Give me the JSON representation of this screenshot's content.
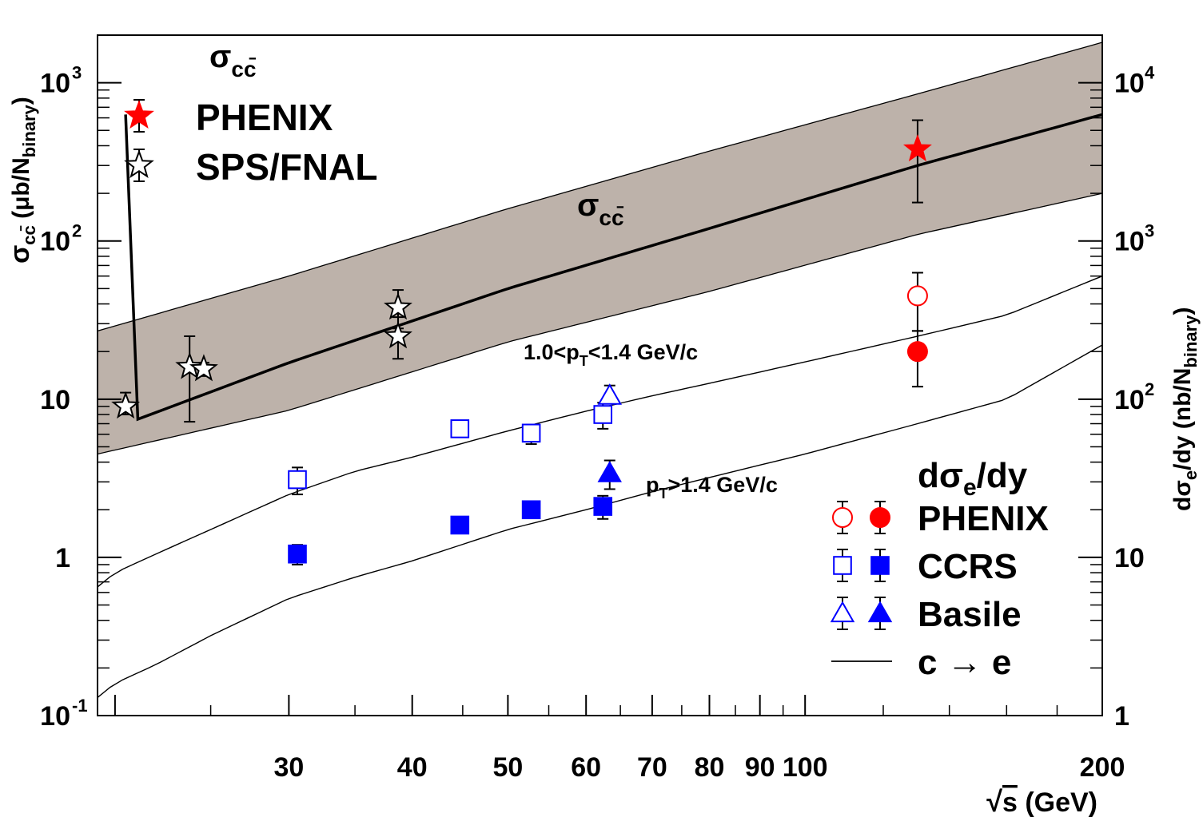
{
  "chart_data": {
    "type": "scatter",
    "x_axis": {
      "label_prefix": "√",
      "label_var": "s",
      "label_unit": " (GeV)",
      "scale": "log",
      "range": [
        19.2,
        200
      ],
      "tick_labels": [
        {
          "value": 30,
          "label": "30"
        },
        {
          "value": 40,
          "label": "40"
        },
        {
          "value": 50,
          "label": "50"
        },
        {
          "value": 60,
          "label": "60"
        },
        {
          "value": 70,
          "label": "70"
        },
        {
          "value": 80,
          "label": "80"
        },
        {
          "value": 90,
          "label": "90"
        },
        {
          "value": 100,
          "label": "100"
        },
        {
          "value": 200,
          "label": "200"
        }
      ]
    },
    "y_left": {
      "label_sigma": "σ",
      "label_sub": "cc̄",
      "label_main": " (μb/N",
      "label_sub2": "binary",
      "label_close": ")",
      "scale": "log",
      "range": [
        0.1,
        2000
      ],
      "tick_labels": [
        {
          "value": 0.1,
          "base": "10",
          "exp": "-1"
        },
        {
          "value": 1,
          "base": "1",
          "exp": ""
        },
        {
          "value": 10,
          "base": "10",
          "exp": ""
        },
        {
          "value": 100,
          "base": "10",
          "exp": "2"
        },
        {
          "value": 1000,
          "base": "10",
          "exp": "3"
        }
      ]
    },
    "y_right": {
      "label_main": "dσ",
      "label_sub": "e",
      "label_mid": "/dy (nb/N",
      "label_sub2": "binary",
      "label_close": ")",
      "scale": "log",
      "range": [
        1,
        20000
      ],
      "tick_labels": [
        {
          "value": 1,
          "base": "1",
          "exp": ""
        },
        {
          "value": 10,
          "base": "10",
          "exp": ""
        },
        {
          "value": 100,
          "base": "10",
          "exp": "2"
        },
        {
          "value": 1000,
          "base": "10",
          "exp": "3"
        },
        {
          "value": 10000,
          "base": "10",
          "exp": "4"
        }
      ]
    },
    "band_sigma_ccbar": {
      "label_sigma": "σ",
      "label_sub": "cc̄",
      "color": "#bdb2aa",
      "x": [
        19.2,
        30,
        50,
        80,
        130,
        200
      ],
      "upper": [
        27,
        60,
        160,
        370,
        850,
        1800
      ],
      "central": [
        6,
        17,
        50,
        120,
        300,
        630
      ],
      "lower": [
        4.5,
        8.5,
        23,
        48,
        110,
        200
      ]
    },
    "curves_c_to_e": [
      {
        "label": "1.0<p",
        "label_sub": "T",
        "label_tail": "<1.4 GeV/c",
        "x": [
          19.2,
          20,
          22,
          25,
          30,
          35,
          40,
          50,
          60,
          70,
          80,
          100,
          130,
          160,
          200
        ],
        "y": [
          0.65,
          0.8,
          1.05,
          1.5,
          2.5,
          3.5,
          4.3,
          6.3,
          8.4,
          10.5,
          12.6,
          17.2,
          25,
          34,
          60
        ]
      },
      {
        "label": "p",
        "label_sub": "T",
        "label_tail": ">1.4 GeV/c",
        "x": [
          19.2,
          20,
          22,
          25,
          30,
          35,
          40,
          50,
          60,
          70,
          80,
          100,
          130,
          160,
          200
        ],
        "y": [
          0.13,
          0.16,
          0.21,
          0.32,
          0.55,
          0.75,
          0.95,
          1.5,
          2.0,
          2.6,
          3.2,
          4.5,
          7.0,
          10,
          22
        ]
      }
    ],
    "series": [
      {
        "name": "PHENIX σcc̄",
        "marker": "star-filled",
        "color": "#ff0000",
        "points": [
          {
            "x": 130,
            "y": 380,
            "ylo": 175,
            "yhi": 580
          }
        ]
      },
      {
        "name": "SPS/FNAL σcc̄",
        "marker": "star-open",
        "color": "#000000",
        "points": [
          {
            "x": 20.5,
            "y": 9,
            "ylo": 8,
            "yhi": 11
          },
          {
            "x": 23.8,
            "y": 16,
            "ylo": 7.2,
            "yhi": 25
          },
          {
            "x": 24.6,
            "y": 15.5,
            "ylo": 14,
            "yhi": 17
          },
          {
            "x": 38.7,
            "y": 38,
            "ylo": 28,
            "yhi": 49
          },
          {
            "x": 38.7,
            "y": 25,
            "ylo": 18,
            "yhi": 33
          }
        ]
      },
      {
        "name": "PHENIX 1.0<pT<1.4",
        "marker": "circle-open",
        "color": "#ff0000",
        "points": [
          {
            "x": 130,
            "y": 45,
            "ylo": 27,
            "yhi": 63
          }
        ]
      },
      {
        "name": "PHENIX pT>1.4",
        "marker": "circle-filled",
        "color": "#ff0000",
        "points": [
          {
            "x": 130,
            "y": 20,
            "ylo": 12,
            "yhi": 27
          }
        ]
      },
      {
        "name": "CCRS 1.0<pT<1.4",
        "marker": "square-open",
        "color": "#0000ff",
        "points": [
          {
            "x": 30.6,
            "y": 3.1,
            "ylo": 2.5,
            "yhi": 3.7
          },
          {
            "x": 44.7,
            "y": 6.5,
            "ylo": 6.2,
            "yhi": 6.8
          },
          {
            "x": 52.8,
            "y": 6.1,
            "ylo": 5.2,
            "yhi": 6.9
          },
          {
            "x": 62.4,
            "y": 8.0,
            "ylo": 6.5,
            "yhi": 9.5
          }
        ]
      },
      {
        "name": "CCRS pT>1.4",
        "marker": "square-filled",
        "color": "#0000ff",
        "points": [
          {
            "x": 30.6,
            "y": 1.05,
            "ylo": 0.9,
            "yhi": 1.2
          },
          {
            "x": 44.7,
            "y": 1.6,
            "ylo": 1.5,
            "yhi": 1.7
          },
          {
            "x": 52.8,
            "y": 2.0,
            "ylo": 1.8,
            "yhi": 2.2
          },
          {
            "x": 62.4,
            "y": 2.1,
            "ylo": 1.75,
            "yhi": 2.45
          }
        ]
      },
      {
        "name": "Basile 1.0<pT<1.4",
        "marker": "triangle-open",
        "color": "#0000ff",
        "points": [
          {
            "x": 63.4,
            "y": 10.5,
            "ylo": 9.5,
            "yhi": 12.2
          }
        ]
      },
      {
        "name": "Basile pT>1.4",
        "marker": "triangle-filled",
        "color": "#0000ff",
        "points": [
          {
            "x": 63.4,
            "y": 3.4,
            "ylo": 2.7,
            "yhi": 4.1
          }
        ]
      }
    ],
    "legend_top": {
      "title_sigma": "σ",
      "title_sub": "cc̄",
      "entries": [
        {
          "label": "PHENIX",
          "markers": [
            "star-filled"
          ],
          "colors": [
            "#ff0000"
          ]
        },
        {
          "label": "SPS/FNAL",
          "markers": [
            "star-open"
          ],
          "colors": [
            "#000000"
          ]
        }
      ]
    },
    "legend_bottom": {
      "title_main": "dσ",
      "title_sub": "e",
      "title_tail": "/dy",
      "entries": [
        {
          "label": "PHENIX",
          "markers": [
            "circle-open",
            "circle-filled"
          ],
          "colors": [
            "#ff0000",
            "#ff0000"
          ]
        },
        {
          "label": "CCRS",
          "markers": [
            "square-open",
            "square-filled"
          ],
          "colors": [
            "#0000ff",
            "#0000ff"
          ]
        },
        {
          "label": "Basile",
          "markers": [
            "triangle-open",
            "triangle-filled"
          ],
          "colors": [
            "#0000ff",
            "#0000ff"
          ]
        },
        {
          "label": "c → e",
          "markers": [
            "line"
          ],
          "colors": [
            "#000000"
          ]
        }
      ]
    }
  }
}
